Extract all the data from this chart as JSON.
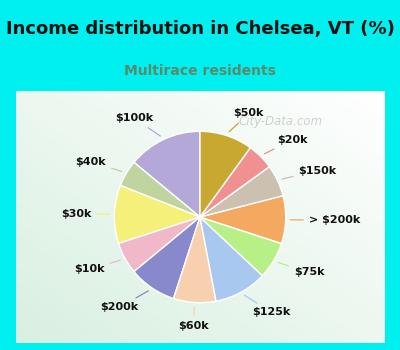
{
  "title": "Income distribution in Chelsea, VT (%)",
  "subtitle": "Multirace residents",
  "title_color": "#111111",
  "subtitle_color": "#5a8a6a",
  "bg_cyan": "#00f0f0",
  "watermark": "City-Data.com",
  "labels": [
    "$100k",
    "$40k",
    "$30k",
    "$10k",
    "$200k",
    "$60k",
    "$125k",
    "$75k",
    "> $200k",
    "$150k",
    "$20k",
    "$50k"
  ],
  "values": [
    14,
    5,
    11,
    6,
    9,
    8,
    10,
    7,
    9,
    6,
    5,
    10
  ],
  "colors": [
    "#b3a8d8",
    "#c0d4a0",
    "#f5f07a",
    "#f0b8c8",
    "#8888cc",
    "#f8d0b0",
    "#a8c8f0",
    "#b8f088",
    "#f5a860",
    "#ccc0b0",
    "#f09090",
    "#c8a830"
  ],
  "label_fontsize": 8,
  "startangle": 90,
  "title_fontsize": 13,
  "subtitle_fontsize": 10
}
